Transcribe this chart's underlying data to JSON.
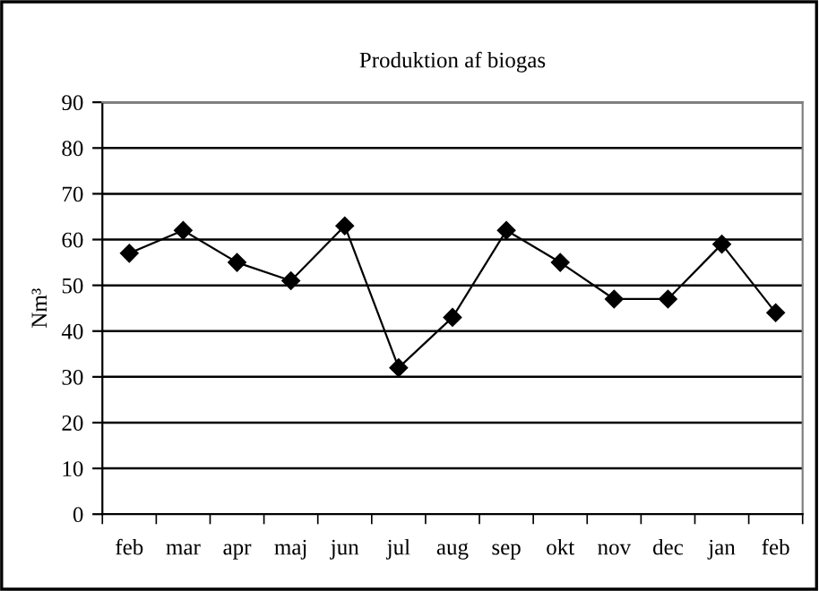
{
  "chart_data": {
    "type": "line",
    "title": "Produktion af biogas",
    "ylabel": "Nm³",
    "categories": [
      "feb",
      "mar",
      "apr",
      "maj",
      "jun",
      "jul",
      "aug",
      "sep",
      "okt",
      "nov",
      "dec",
      "jan",
      "feb"
    ],
    "series": [
      {
        "color": "#000000",
        "values": [
          57,
          62,
          55,
          51,
          63,
          32,
          43,
          62,
          55,
          47,
          47,
          59,
          44
        ]
      }
    ],
    "ylim": [
      0,
      90
    ],
    "yticks": [
      0,
      10,
      20,
      30,
      40,
      50,
      60,
      70,
      80,
      90
    ],
    "grid": "y",
    "marker": "diamond",
    "line_style": "solid",
    "legend": false
  }
}
